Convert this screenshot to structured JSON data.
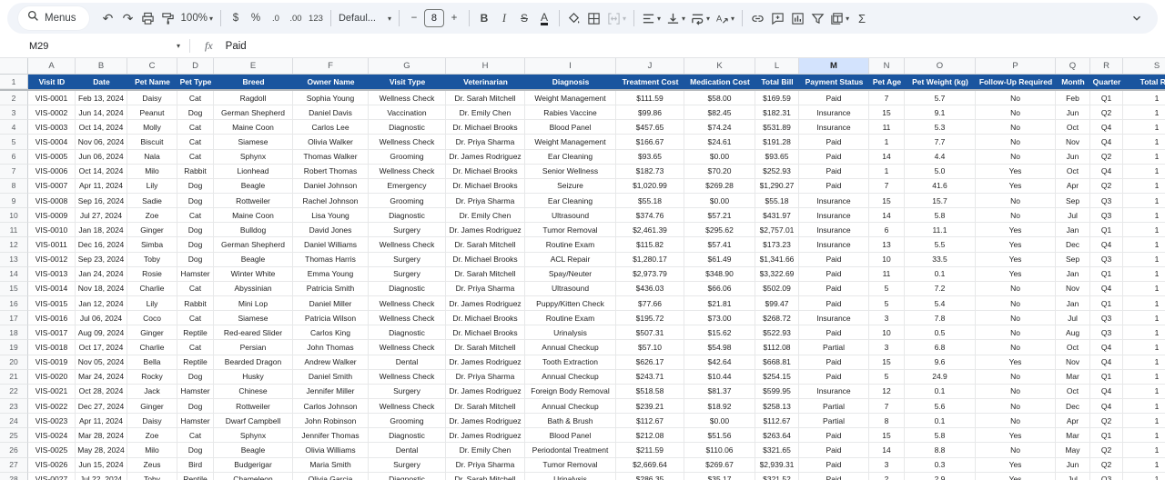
{
  "colors": {
    "header_bg": "#1a559f",
    "selected_col_bg": "#d3e3fd",
    "accent": "#0b57d0"
  },
  "toolbar": {
    "menus_label": "Menus",
    "zoom_value": "100%",
    "currency": "$",
    "percent": "%",
    "dec_decrease": ".0",
    "dec_increase": ".00",
    "more_formats": "123",
    "font_name": "Defaul...",
    "minus": "−",
    "font_size": "8",
    "plus": "+",
    "bold": "B",
    "italic": "I",
    "strikethrough": "S",
    "text_color": "A",
    "undo": "↶",
    "redo": "↷",
    "functions": "Σ"
  },
  "formula_bar": {
    "cell_ref": "M29",
    "fx_label": "fx",
    "value": "Paid"
  },
  "grid": {
    "selected_column": "M",
    "header_row_number": "1",
    "columns": [
      {
        "letter": "A",
        "label": "Visit ID"
      },
      {
        "letter": "B",
        "label": "Date"
      },
      {
        "letter": "C",
        "label": "Pet Name"
      },
      {
        "letter": "D",
        "label": "Pet Type"
      },
      {
        "letter": "E",
        "label": "Breed"
      },
      {
        "letter": "F",
        "label": "Owner Name"
      },
      {
        "letter": "G",
        "label": "Visit Type"
      },
      {
        "letter": "H",
        "label": "Veterinarian"
      },
      {
        "letter": "I",
        "label": "Diagnosis"
      },
      {
        "letter": "J",
        "label": "Treatment Cost"
      },
      {
        "letter": "K",
        "label": "Medication Cost"
      },
      {
        "letter": "L",
        "label": "Total Bill"
      },
      {
        "letter": "M",
        "label": "Payment Status"
      },
      {
        "letter": "N",
        "label": "Pet Age"
      },
      {
        "letter": "O",
        "label": "Pet Weight (kg)"
      },
      {
        "letter": "P",
        "label": "Follow-Up Required"
      },
      {
        "letter": "Q",
        "label": "Month"
      },
      {
        "letter": "R",
        "label": "Quarter"
      },
      {
        "letter": "S",
        "label": "Total Rec"
      }
    ],
    "rows": [
      {
        "n": "2",
        "cells": [
          "VIS-0001",
          "Feb 13, 2024",
          "Daisy",
          "Cat",
          "Ragdoll",
          "Sophia Young",
          "Wellness Check",
          "Dr. Sarah Mitchell",
          "Weight Management",
          "$111.59",
          "$58.00",
          "$169.59",
          "Paid",
          "7",
          "5.7",
          "No",
          "Feb",
          "Q1",
          "1"
        ]
      },
      {
        "n": "3",
        "cells": [
          "VIS-0002",
          "Jun 14, 2024",
          "Peanut",
          "Dog",
          "German Shepherd",
          "Daniel Davis",
          "Vaccination",
          "Dr. Emily Chen",
          "Rabies Vaccine",
          "$99.86",
          "$82.45",
          "$182.31",
          "Insurance",
          "15",
          "9.1",
          "No",
          "Jun",
          "Q2",
          "1"
        ]
      },
      {
        "n": "4",
        "cells": [
          "VIS-0003",
          "Oct 14, 2024",
          "Molly",
          "Cat",
          "Maine Coon",
          "Carlos Lee",
          "Diagnostic",
          "Dr. Michael Brooks",
          "Blood Panel",
          "$457.65",
          "$74.24",
          "$531.89",
          "Insurance",
          "11",
          "5.3",
          "No",
          "Oct",
          "Q4",
          "1"
        ]
      },
      {
        "n": "5",
        "cells": [
          "VIS-0004",
          "Nov 06, 2024",
          "Biscuit",
          "Cat",
          "Siamese",
          "Olivia Walker",
          "Wellness Check",
          "Dr. Priya Sharma",
          "Weight Management",
          "$166.67",
          "$24.61",
          "$191.28",
          "Paid",
          "1",
          "7.7",
          "No",
          "Nov",
          "Q4",
          "1"
        ]
      },
      {
        "n": "6",
        "cells": [
          "VIS-0005",
          "Jun 06, 2024",
          "Nala",
          "Cat",
          "Sphynx",
          "Thomas Walker",
          "Grooming",
          "Dr. James Rodriguez",
          "Ear Cleaning",
          "$93.65",
          "$0.00",
          "$93.65",
          "Paid",
          "14",
          "4.4",
          "No",
          "Jun",
          "Q2",
          "1"
        ]
      },
      {
        "n": "7",
        "cells": [
          "VIS-0006",
          "Oct 14, 2024",
          "Milo",
          "Rabbit",
          "Lionhead",
          "Robert Thomas",
          "Wellness Check",
          "Dr. Michael Brooks",
          "Senior Wellness",
          "$182.73",
          "$70.20",
          "$252.93",
          "Paid",
          "1",
          "5.0",
          "Yes",
          "Oct",
          "Q4",
          "1"
        ]
      },
      {
        "n": "8",
        "cells": [
          "VIS-0007",
          "Apr 11, 2024",
          "Lily",
          "Dog",
          "Beagle",
          "Daniel Johnson",
          "Emergency",
          "Dr. Michael Brooks",
          "Seizure",
          "$1,020.99",
          "$269.28",
          "$1,290.27",
          "Paid",
          "7",
          "41.6",
          "Yes",
          "Apr",
          "Q2",
          "1"
        ]
      },
      {
        "n": "9",
        "cells": [
          "VIS-0008",
          "Sep 16, 2024",
          "Sadie",
          "Dog",
          "Rottweiler",
          "Rachel Johnson",
          "Grooming",
          "Dr. Priya Sharma",
          "Ear Cleaning",
          "$55.18",
          "$0.00",
          "$55.18",
          "Insurance",
          "15",
          "15.7",
          "No",
          "Sep",
          "Q3",
          "1"
        ]
      },
      {
        "n": "10",
        "cells": [
          "VIS-0009",
          "Jul 27, 2024",
          "Zoe",
          "Cat",
          "Maine Coon",
          "Lisa Young",
          "Diagnostic",
          "Dr. Emily Chen",
          "Ultrasound",
          "$374.76",
          "$57.21",
          "$431.97",
          "Insurance",
          "14",
          "5.8",
          "No",
          "Jul",
          "Q3",
          "1"
        ]
      },
      {
        "n": "11",
        "cells": [
          "VIS-0010",
          "Jan 18, 2024",
          "Ginger",
          "Dog",
          "Bulldog",
          "David Jones",
          "Surgery",
          "Dr. James Rodriguez",
          "Tumor Removal",
          "$2,461.39",
          "$295.62",
          "$2,757.01",
          "Insurance",
          "6",
          "11.1",
          "Yes",
          "Jan",
          "Q1",
          "1"
        ]
      },
      {
        "n": "12",
        "cells": [
          "VIS-0011",
          "Dec 16, 2024",
          "Simba",
          "Dog",
          "German Shepherd",
          "Daniel Williams",
          "Wellness Check",
          "Dr. Sarah Mitchell",
          "Routine Exam",
          "$115.82",
          "$57.41",
          "$173.23",
          "Insurance",
          "13",
          "5.5",
          "Yes",
          "Dec",
          "Q4",
          "1"
        ]
      },
      {
        "n": "13",
        "cells": [
          "VIS-0012",
          "Sep 23, 2024",
          "Toby",
          "Dog",
          "Beagle",
          "Thomas Harris",
          "Surgery",
          "Dr. Michael Brooks",
          "ACL Repair",
          "$1,280.17",
          "$61.49",
          "$1,341.66",
          "Paid",
          "10",
          "33.5",
          "Yes",
          "Sep",
          "Q3",
          "1"
        ]
      },
      {
        "n": "14",
        "cells": [
          "VIS-0013",
          "Jan 24, 2024",
          "Rosie",
          "Hamster",
          "Winter White",
          "Emma Young",
          "Surgery",
          "Dr. Sarah Mitchell",
          "Spay/Neuter",
          "$2,973.79",
          "$348.90",
          "$3,322.69",
          "Paid",
          "11",
          "0.1",
          "Yes",
          "Jan",
          "Q1",
          "1"
        ]
      },
      {
        "n": "15",
        "cells": [
          "VIS-0014",
          "Nov 18, 2024",
          "Charlie",
          "Cat",
          "Abyssinian",
          "Patricia Smith",
          "Diagnostic",
          "Dr. Priya Sharma",
          "Ultrasound",
          "$436.03",
          "$66.06",
          "$502.09",
          "Paid",
          "5",
          "7.2",
          "No",
          "Nov",
          "Q4",
          "1"
        ]
      },
      {
        "n": "16",
        "cells": [
          "VIS-0015",
          "Jan 12, 2024",
          "Lily",
          "Rabbit",
          "Mini Lop",
          "Daniel Miller",
          "Wellness Check",
          "Dr. James Rodriguez",
          "Puppy/Kitten Check",
          "$77.66",
          "$21.81",
          "$99.47",
          "Paid",
          "5",
          "5.4",
          "No",
          "Jan",
          "Q1",
          "1"
        ]
      },
      {
        "n": "17",
        "cells": [
          "VIS-0016",
          "Jul 06, 2024",
          "Coco",
          "Cat",
          "Siamese",
          "Patricia Wilson",
          "Wellness Check",
          "Dr. Michael Brooks",
          "Routine Exam",
          "$195.72",
          "$73.00",
          "$268.72",
          "Insurance",
          "3",
          "7.8",
          "No",
          "Jul",
          "Q3",
          "1"
        ]
      },
      {
        "n": "18",
        "cells": [
          "VIS-0017",
          "Aug 09, 2024",
          "Ginger",
          "Reptile",
          "Red-eared Slider",
          "Carlos King",
          "Diagnostic",
          "Dr. Michael Brooks",
          "Urinalysis",
          "$507.31",
          "$15.62",
          "$522.93",
          "Paid",
          "10",
          "0.5",
          "No",
          "Aug",
          "Q3",
          "1"
        ]
      },
      {
        "n": "19",
        "cells": [
          "VIS-0018",
          "Oct 17, 2024",
          "Charlie",
          "Cat",
          "Persian",
          "John Thomas",
          "Wellness Check",
          "Dr. Sarah Mitchell",
          "Annual Checkup",
          "$57.10",
          "$54.98",
          "$112.08",
          "Partial",
          "3",
          "6.8",
          "No",
          "Oct",
          "Q4",
          "1"
        ]
      },
      {
        "n": "20",
        "cells": [
          "VIS-0019",
          "Nov 05, 2024",
          "Bella",
          "Reptile",
          "Bearded Dragon",
          "Andrew Walker",
          "Dental",
          "Dr. James Rodriguez",
          "Tooth Extraction",
          "$626.17",
          "$42.64",
          "$668.81",
          "Paid",
          "15",
          "9.6",
          "Yes",
          "Nov",
          "Q4",
          "1"
        ]
      },
      {
        "n": "21",
        "cells": [
          "VIS-0020",
          "Mar 24, 2024",
          "Rocky",
          "Dog",
          "Husky",
          "Daniel Smith",
          "Wellness Check",
          "Dr. Priya Sharma",
          "Annual Checkup",
          "$243.71",
          "$10.44",
          "$254.15",
          "Paid",
          "5",
          "24.9",
          "No",
          "Mar",
          "Q1",
          "1"
        ]
      },
      {
        "n": "22",
        "cells": [
          "VIS-0021",
          "Oct 28, 2024",
          "Jack",
          "Hamster",
          "Chinese",
          "Jennifer Miller",
          "Surgery",
          "Dr. James Rodriguez",
          "Foreign Body Removal",
          "$518.58",
          "$81.37",
          "$599.95",
          "Insurance",
          "12",
          "0.1",
          "No",
          "Oct",
          "Q4",
          "1"
        ]
      },
      {
        "n": "23",
        "cells": [
          "VIS-0022",
          "Dec 27, 2024",
          "Ginger",
          "Dog",
          "Rottweiler",
          "Carlos Johnson",
          "Wellness Check",
          "Dr. Sarah Mitchell",
          "Annual Checkup",
          "$239.21",
          "$18.92",
          "$258.13",
          "Partial",
          "7",
          "5.6",
          "No",
          "Dec",
          "Q4",
          "1"
        ]
      },
      {
        "n": "24",
        "cells": [
          "VIS-0023",
          "Apr 11, 2024",
          "Daisy",
          "Hamster",
          "Dwarf Campbell",
          "John Robinson",
          "Grooming",
          "Dr. James Rodriguez",
          "Bath & Brush",
          "$112.67",
          "$0.00",
          "$112.67",
          "Partial",
          "8",
          "0.1",
          "No",
          "Apr",
          "Q2",
          "1"
        ]
      },
      {
        "n": "25",
        "cells": [
          "VIS-0024",
          "Mar 28, 2024",
          "Zoe",
          "Cat",
          "Sphynx",
          "Jennifer Thomas",
          "Diagnostic",
          "Dr. James Rodriguez",
          "Blood Panel",
          "$212.08",
          "$51.56",
          "$263.64",
          "Paid",
          "15",
          "5.8",
          "Yes",
          "Mar",
          "Q1",
          "1"
        ]
      },
      {
        "n": "26",
        "cells": [
          "VIS-0025",
          "May 28, 2024",
          "Milo",
          "Dog",
          "Beagle",
          "Olivia Williams",
          "Dental",
          "Dr. Emily Chen",
          "Periodontal Treatment",
          "$211.59",
          "$110.06",
          "$321.65",
          "Paid",
          "14",
          "8.8",
          "No",
          "May",
          "Q2",
          "1"
        ]
      },
      {
        "n": "27",
        "cells": [
          "VIS-0026",
          "Jun 15, 2024",
          "Zeus",
          "Bird",
          "Budgerigar",
          "Maria Smith",
          "Surgery",
          "Dr. Priya Sharma",
          "Tumor Removal",
          "$2,669.64",
          "$269.67",
          "$2,939.31",
          "Paid",
          "3",
          "0.3",
          "Yes",
          "Jun",
          "Q2",
          "1"
        ]
      },
      {
        "n": "28",
        "cells": [
          "VIS-0027",
          "Jul 22, 2024",
          "Toby",
          "Reptile",
          "Chameleon",
          "Olivia Garcia",
          "Diagnostic",
          "Dr. Sarah Mitchell",
          "Urinalysis",
          "$286.35",
          "$35.17",
          "$321.52",
          "Paid",
          "2",
          "2.9",
          "Yes",
          "Jul",
          "Q3",
          "1"
        ]
      }
    ]
  }
}
